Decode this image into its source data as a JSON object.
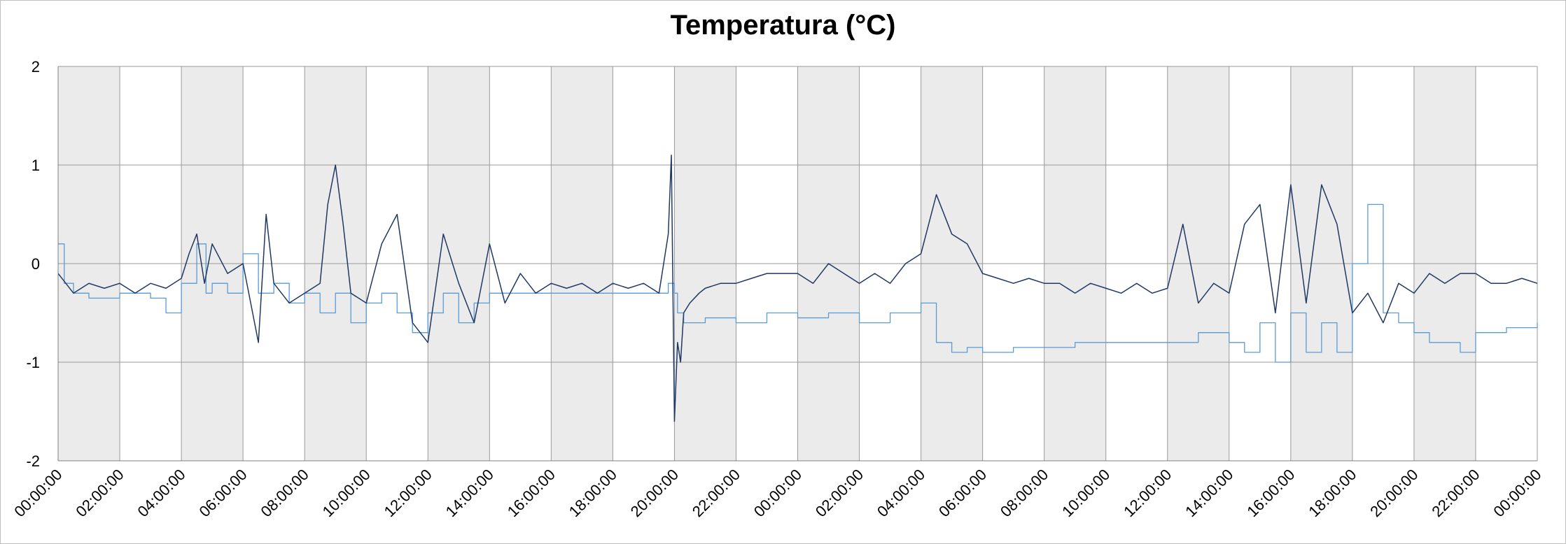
{
  "chart_data": {
    "type": "line",
    "title": "Temperatura (°C)",
    "xlabel": "",
    "ylabel": "",
    "ylim": [
      -2,
      2
    ],
    "yticks": [
      2,
      1,
      0,
      -1,
      -2
    ],
    "x_range_hours": [
      0,
      48
    ],
    "xtick_labels": [
      "00:00:00",
      "02:00:00",
      "04:00:00",
      "06:00:00",
      "08:00:00",
      "10:00:00",
      "12:00:00",
      "14:00:00",
      "16:00:00",
      "18:00:00",
      "20:00:00",
      "22:00:00",
      "00:00:00",
      "02:00:00",
      "04:00:00",
      "06:00:00",
      "08:00:00",
      "10:00:00",
      "12:00:00",
      "14:00:00",
      "16:00:00",
      "18:00:00",
      "20:00:00",
      "22:00:00",
      "00:00:00"
    ],
    "shaded_bands": [
      [
        0,
        2
      ],
      [
        4,
        6
      ],
      [
        8,
        10
      ],
      [
        12,
        14
      ],
      [
        16,
        18
      ],
      [
        20,
        22
      ],
      [
        24,
        26
      ],
      [
        28,
        30
      ],
      [
        32,
        34
      ],
      [
        36,
        38
      ],
      [
        40,
        42
      ],
      [
        44,
        46
      ]
    ],
    "grid": true,
    "legend": "none",
    "series": [
      {
        "color": "#1f3864",
        "x": [
          0,
          0.5,
          1,
          1.5,
          2,
          2.5,
          3,
          3.5,
          4,
          4.25,
          4.5,
          4.75,
          5,
          5.5,
          6,
          6.25,
          6.5,
          6.75,
          7,
          7.5,
          8,
          8.5,
          8.75,
          9,
          9.25,
          9.5,
          10,
          10.5,
          11,
          11.5,
          12,
          12.5,
          13,
          13.5,
          14,
          14.5,
          15,
          15.5,
          16,
          16.5,
          17,
          17.5,
          18,
          18.5,
          19,
          19.5,
          19.8,
          19.9,
          20,
          20.1,
          20.2,
          20.3,
          20.5,
          20.8,
          21,
          21.5,
          22,
          22.5,
          23,
          23.5,
          24,
          24.5,
          25,
          25.5,
          26,
          26.5,
          27,
          27.5,
          28,
          28.5,
          29,
          29.5,
          30,
          30.5,
          31,
          31.5,
          32,
          32.5,
          33,
          33.5,
          34,
          34.5,
          35,
          35.5,
          36,
          36.5,
          37,
          37.5,
          38,
          38.5,
          39,
          39.5,
          40,
          40.5,
          41,
          41.5,
          42,
          42.5,
          43,
          43.5,
          44,
          44.5,
          45,
          45.5,
          46,
          46.5,
          47,
          47.5,
          48
        ],
        "y": [
          -0.1,
          -0.3,
          -0.2,
          -0.25,
          -0.2,
          -0.3,
          -0.2,
          -0.25,
          -0.15,
          0.1,
          0.3,
          -0.2,
          0.2,
          -0.1,
          0,
          -0.4,
          -0.8,
          0.5,
          -0.2,
          -0.4,
          -0.3,
          -0.2,
          0.6,
          1.0,
          0.4,
          -0.3,
          -0.4,
          0.2,
          0.5,
          -0.6,
          -0.8,
          0.3,
          -0.2,
          -0.6,
          0.2,
          -0.4,
          -0.1,
          -0.3,
          -0.2,
          -0.25,
          -0.2,
          -0.3,
          -0.2,
          -0.25,
          -0.2,
          -0.3,
          0.3,
          1.1,
          -1.6,
          -0.8,
          -1.0,
          -0.5,
          -0.4,
          -0.3,
          -0.25,
          -0.2,
          -0.2,
          -0.15,
          -0.1,
          -0.1,
          -0.1,
          -0.2,
          0,
          -0.1,
          -0.2,
          -0.1,
          -0.2,
          0.0,
          0.1,
          0.7,
          0.3,
          0.2,
          -0.1,
          -0.15,
          -0.2,
          -0.15,
          -0.2,
          -0.2,
          -0.3,
          -0.2,
          -0.25,
          -0.3,
          -0.2,
          -0.3,
          -0.25,
          0.4,
          -0.4,
          -0.2,
          -0.3,
          0.4,
          0.6,
          -0.5,
          0.8,
          -0.4,
          0.8,
          0.4,
          -0.5,
          -0.3,
          -0.6,
          -0.2,
          -0.3,
          -0.1,
          -0.2,
          -0.1,
          -0.1,
          -0.2,
          -0.2,
          -0.15,
          -0.2
        ],
        "step": false
      },
      {
        "color": "#5b9bd5",
        "x": [
          0,
          0.2,
          0.5,
          1,
          2,
          3,
          3.5,
          4,
          4.5,
          4.8,
          5,
          5.5,
          6,
          6.5,
          7,
          7.5,
          8,
          8.5,
          9,
          9.5,
          10,
          10.5,
          11,
          11.5,
          12,
          12.5,
          13,
          13.5,
          14,
          15,
          16,
          17,
          18,
          19,
          19.8,
          20,
          20.1,
          20.3,
          20.5,
          21,
          22,
          23,
          24,
          25,
          26,
          27,
          28,
          28.5,
          29,
          29.5,
          30,
          31,
          32,
          33,
          34,
          35,
          36,
          37,
          38,
          38.5,
          39,
          39.5,
          40,
          40.5,
          41,
          41.5,
          42,
          42.5,
          43,
          43.5,
          44,
          44.5,
          45,
          45.5,
          46,
          47,
          48
        ],
        "y": [
          0.2,
          -0.2,
          -0.3,
          -0.35,
          -0.3,
          -0.35,
          -0.5,
          -0.2,
          0.2,
          -0.3,
          -0.2,
          -0.3,
          0.1,
          -0.3,
          -0.2,
          -0.4,
          -0.3,
          -0.5,
          -0.3,
          -0.6,
          -0.4,
          -0.3,
          -0.5,
          -0.7,
          -0.5,
          -0.3,
          -0.6,
          -0.4,
          -0.3,
          -0.3,
          -0.3,
          -0.3,
          -0.3,
          -0.3,
          -0.2,
          -0.3,
          -0.5,
          -0.6,
          -0.6,
          -0.55,
          -0.6,
          -0.5,
          -0.55,
          -0.5,
          -0.6,
          -0.5,
          -0.4,
          -0.8,
          -0.9,
          -0.85,
          -0.9,
          -0.85,
          -0.85,
          -0.8,
          -0.8,
          -0.8,
          -0.8,
          -0.7,
          -0.8,
          -0.9,
          -0.6,
          -1.0,
          -0.5,
          -0.9,
          -0.6,
          -0.9,
          0.0,
          0.6,
          -0.5,
          -0.6,
          -0.7,
          -0.8,
          -0.8,
          -0.9,
          -0.7,
          -0.65,
          -0.6
        ],
        "step": true
      }
    ]
  }
}
